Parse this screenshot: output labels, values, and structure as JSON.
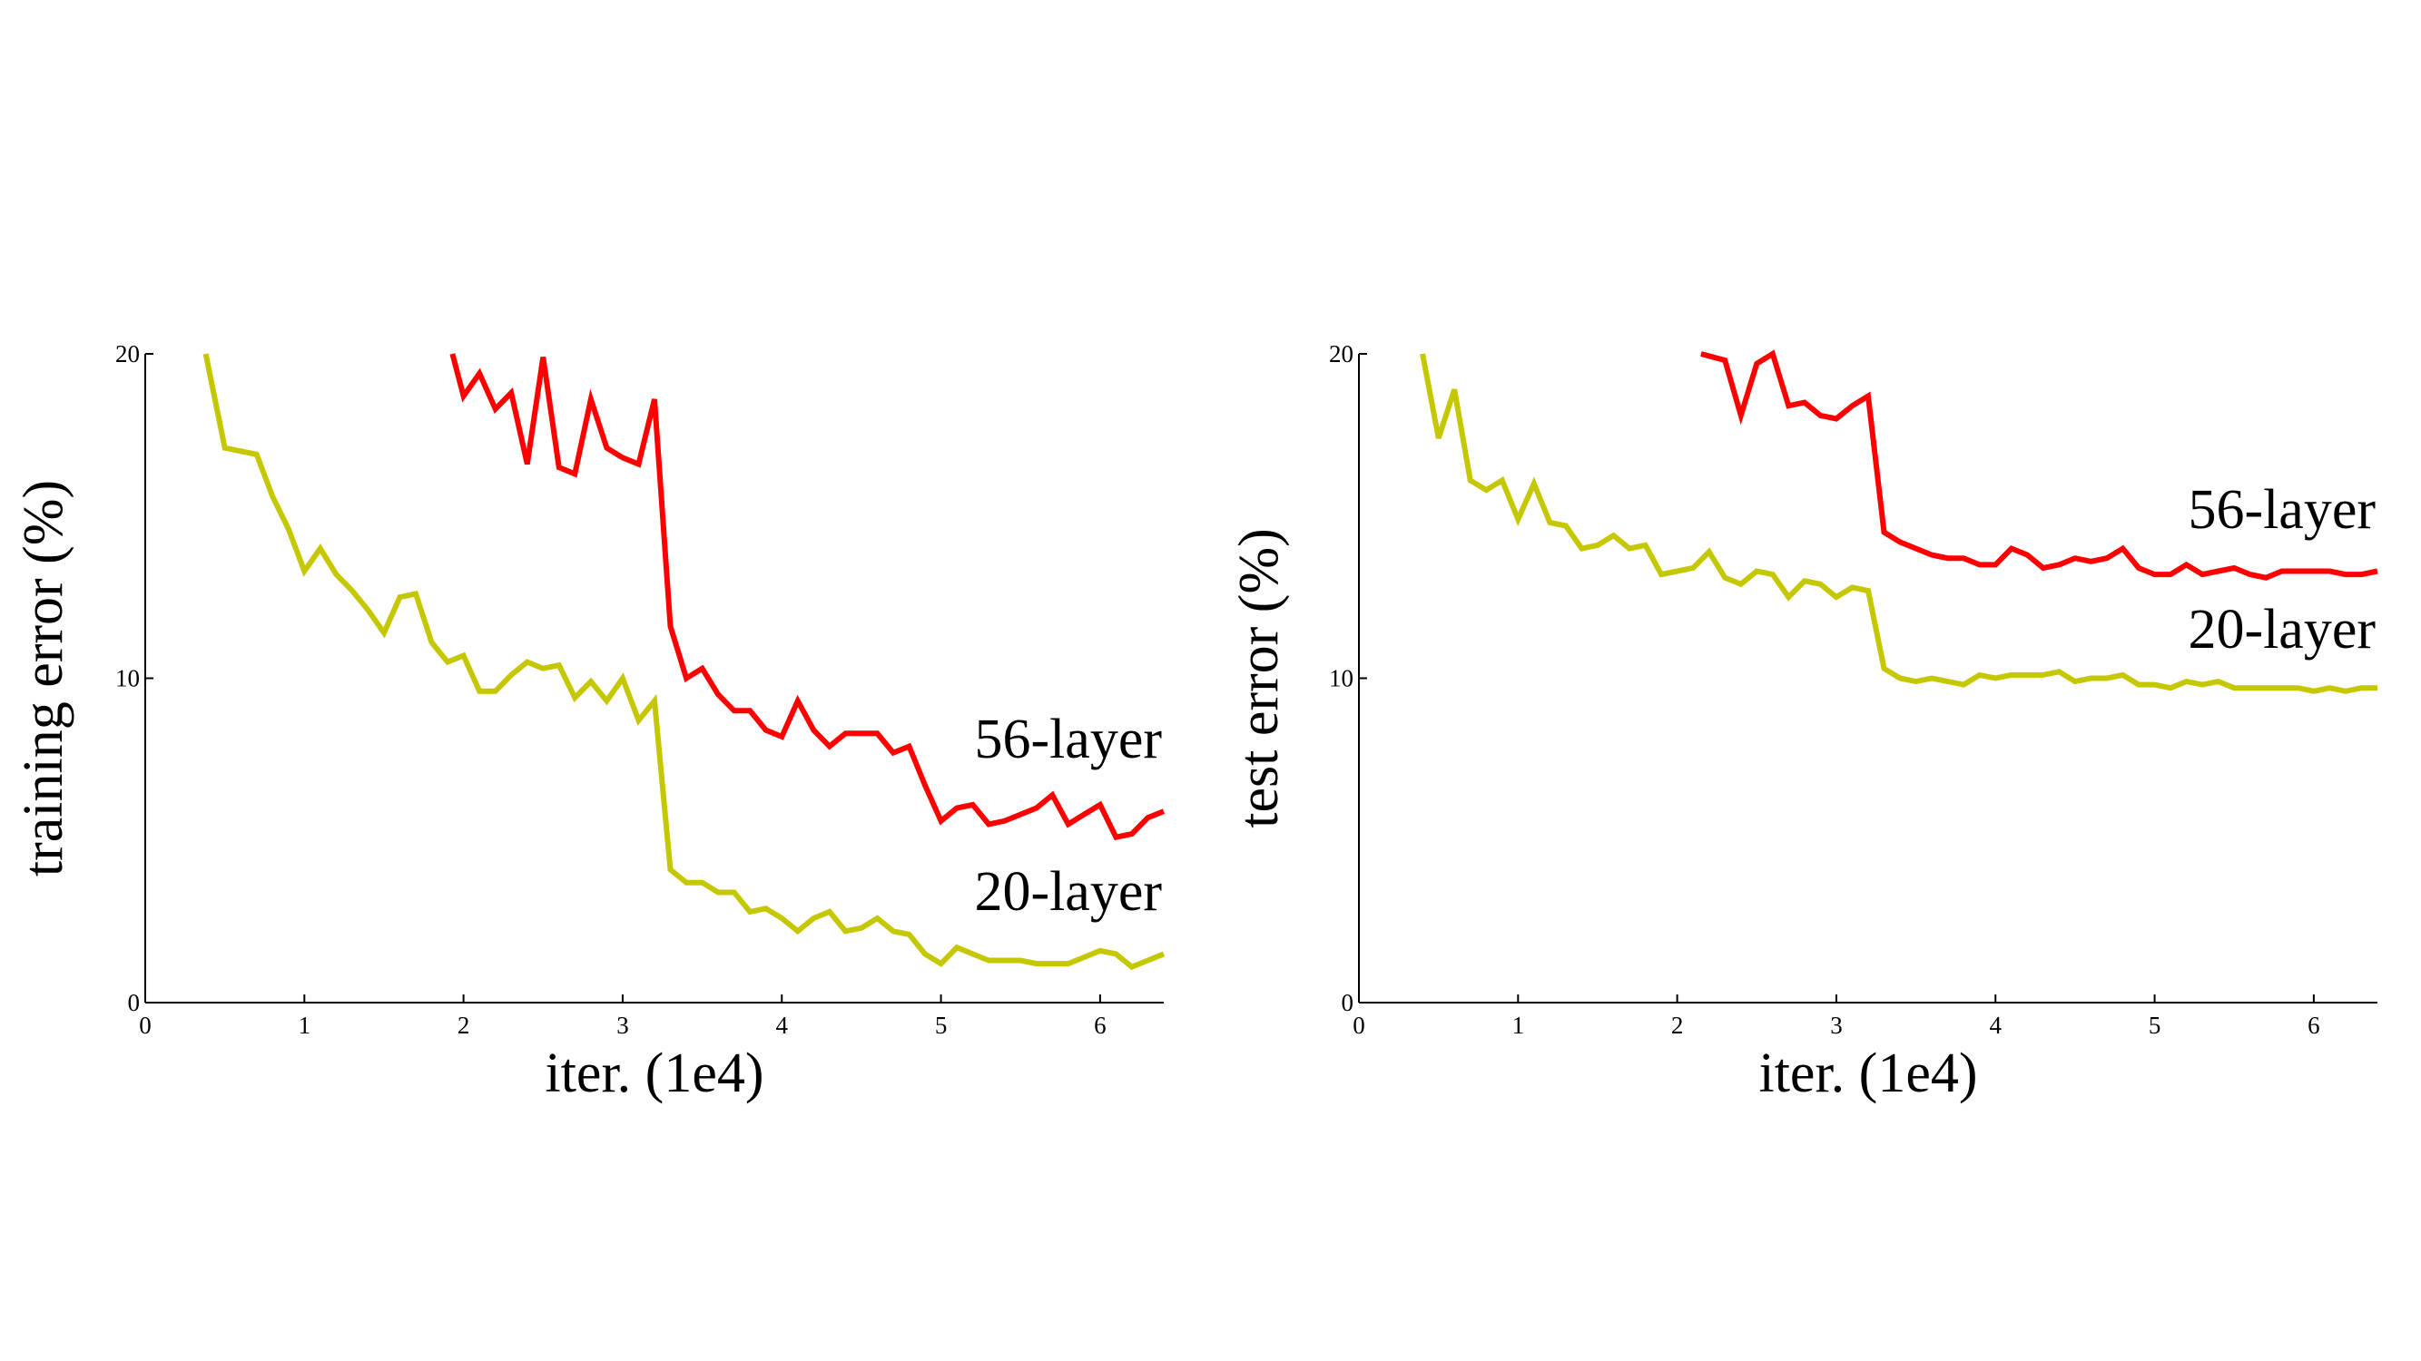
{
  "colors": {
    "layer56": "#ff0000",
    "layer20": "#c5c800"
  },
  "chart_data": [
    {
      "type": "line",
      "xlabel": "iter. (1e4)",
      "ylabel": "training error (%)",
      "xlim": [
        0,
        6.4
      ],
      "ylim": [
        0,
        20
      ],
      "xticks": [
        0,
        1,
        2,
        3,
        4,
        5,
        6
      ],
      "yticks": [
        0,
        10,
        20
      ],
      "grid": false,
      "series": [
        {
          "name": "56-layer",
          "color": "#ff0000",
          "x": [
            1.93,
            2.0,
            2.1,
            2.2,
            2.3,
            2.4,
            2.5,
            2.6,
            2.7,
            2.8,
            2.9,
            3.0,
            3.1,
            3.2,
            3.3,
            3.4,
            3.5,
            3.6,
            3.7,
            3.8,
            3.9,
            4.0,
            4.1,
            4.2,
            4.3,
            4.4,
            4.5,
            4.6,
            4.7,
            4.8,
            4.9,
            5.0,
            5.1,
            5.2,
            5.3,
            5.4,
            5.5,
            5.6,
            5.7,
            5.8,
            5.9,
            6.0,
            6.1,
            6.2,
            6.3,
            6.4
          ],
          "y": [
            20.0,
            18.7,
            19.4,
            18.3,
            18.8,
            16.6,
            19.9,
            16.5,
            16.3,
            18.6,
            17.1,
            16.8,
            16.6,
            18.6,
            11.6,
            10.0,
            10.3,
            9.5,
            9.0,
            9.0,
            8.4,
            8.2,
            9.3,
            8.4,
            7.9,
            8.3,
            8.3,
            8.3,
            7.7,
            7.9,
            6.7,
            5.6,
            6.0,
            6.1,
            5.5,
            5.6,
            5.8,
            6.0,
            6.4,
            5.5,
            5.8,
            6.1,
            5.1,
            5.2,
            5.7,
            5.9
          ]
        },
        {
          "name": "20-layer",
          "color": "#c5c800",
          "x": [
            0.38,
            0.5,
            0.6,
            0.7,
            0.8,
            0.9,
            1.0,
            1.1,
            1.2,
            1.3,
            1.4,
            1.5,
            1.6,
            1.7,
            1.8,
            1.9,
            2.0,
            2.1,
            2.2,
            2.3,
            2.4,
            2.5,
            2.6,
            2.7,
            2.8,
            2.9,
            3.0,
            3.1,
            3.2,
            3.3,
            3.4,
            3.5,
            3.6,
            3.7,
            3.8,
            3.9,
            4.0,
            4.1,
            4.2,
            4.3,
            4.4,
            4.5,
            4.6,
            4.7,
            4.8,
            4.9,
            5.0,
            5.1,
            5.2,
            5.3,
            5.4,
            5.5,
            5.6,
            5.7,
            5.8,
            5.9,
            6.0,
            6.1,
            6.2,
            6.3,
            6.4
          ],
          "y": [
            20.0,
            17.1,
            17.0,
            16.9,
            15.6,
            14.6,
            13.3,
            14.0,
            13.2,
            12.7,
            12.1,
            11.4,
            12.5,
            12.6,
            11.1,
            10.5,
            10.7,
            9.6,
            9.6,
            10.1,
            10.5,
            10.3,
            10.4,
            9.4,
            9.9,
            9.3,
            10.0,
            8.7,
            9.3,
            4.1,
            3.7,
            3.7,
            3.4,
            3.4,
            2.8,
            2.9,
            2.6,
            2.2,
            2.6,
            2.8,
            2.2,
            2.3,
            2.6,
            2.2,
            2.1,
            1.5,
            1.2,
            1.7,
            1.5,
            1.3,
            1.3,
            1.3,
            1.2,
            1.2,
            1.2,
            1.4,
            1.6,
            1.5,
            1.1,
            1.3,
            1.5
          ]
        }
      ]
    },
    {
      "type": "line",
      "xlabel": "iter. (1e4)",
      "ylabel": "test error (%)",
      "xlim": [
        0,
        6.4
      ],
      "ylim": [
        0,
        20
      ],
      "xticks": [
        0,
        1,
        2,
        3,
        4,
        5,
        6
      ],
      "yticks": [
        0,
        10,
        20
      ],
      "grid": false,
      "series": [
        {
          "name": "56-layer",
          "color": "#ff0000",
          "x": [
            2.15,
            2.3,
            2.4,
            2.5,
            2.6,
            2.7,
            2.8,
            2.9,
            3.0,
            3.1,
            3.2,
            3.3,
            3.4,
            3.5,
            3.6,
            3.7,
            3.8,
            3.9,
            4.0,
            4.1,
            4.2,
            4.3,
            4.4,
            4.5,
            4.6,
            4.7,
            4.8,
            4.9,
            5.0,
            5.1,
            5.2,
            5.3,
            5.4,
            5.5,
            5.6,
            5.7,
            5.8,
            5.9,
            6.0,
            6.1,
            6.2,
            6.3,
            6.4
          ],
          "y": [
            20.0,
            19.8,
            18.1,
            19.7,
            20.0,
            18.4,
            18.5,
            18.1,
            18.0,
            18.4,
            18.7,
            14.5,
            14.2,
            14.0,
            13.8,
            13.7,
            13.7,
            13.5,
            13.5,
            14.0,
            13.8,
            13.4,
            13.5,
            13.7,
            13.6,
            13.7,
            14.0,
            13.4,
            13.2,
            13.2,
            13.5,
            13.2,
            13.3,
            13.4,
            13.2,
            13.1,
            13.3,
            13.3,
            13.3,
            13.3,
            13.2,
            13.2,
            13.3
          ]
        },
        {
          "name": "20-layer",
          "color": "#c5c800",
          "x": [
            0.4,
            0.5,
            0.6,
            0.7,
            0.8,
            0.9,
            1.0,
            1.1,
            1.2,
            1.3,
            1.4,
            1.5,
            1.6,
            1.7,
            1.8,
            1.9,
            2.0,
            2.1,
            2.2,
            2.3,
            2.4,
            2.5,
            2.6,
            2.7,
            2.8,
            2.9,
            3.0,
            3.1,
            3.2,
            3.3,
            3.4,
            3.5,
            3.6,
            3.7,
            3.8,
            3.9,
            4.0,
            4.1,
            4.2,
            4.3,
            4.4,
            4.5,
            4.6,
            4.7,
            4.8,
            4.9,
            5.0,
            5.1,
            5.2,
            5.3,
            5.4,
            5.5,
            5.6,
            5.7,
            5.8,
            5.9,
            6.0,
            6.1,
            6.2,
            6.3,
            6.4
          ],
          "y": [
            20.0,
            17.4,
            18.9,
            16.1,
            15.8,
            16.1,
            14.9,
            16.0,
            14.8,
            14.7,
            14.0,
            14.1,
            14.4,
            14.0,
            14.1,
            13.2,
            13.3,
            13.4,
            13.9,
            13.1,
            12.9,
            13.3,
            13.2,
            12.5,
            13.0,
            12.9,
            12.5,
            12.8,
            12.7,
            10.3,
            10.0,
            9.9,
            10.0,
            9.9,
            9.8,
            10.1,
            10.0,
            10.1,
            10.1,
            10.1,
            10.2,
            9.9,
            10.0,
            10.0,
            10.1,
            9.8,
            9.8,
            9.7,
            9.9,
            9.8,
            9.9,
            9.7,
            9.7,
            9.7,
            9.7,
            9.7,
            9.6,
            9.7,
            9.6,
            9.7,
            9.7
          ]
        }
      ]
    }
  ]
}
